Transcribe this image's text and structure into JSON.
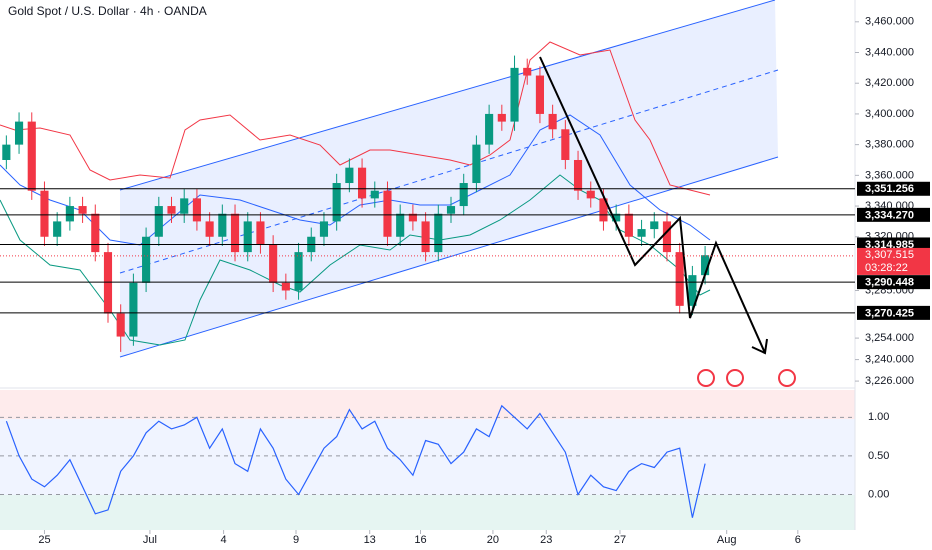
{
  "chart_data": {
    "type": "candlestick",
    "title": "Gold Spot / U.S. Dollar · 4h · OANDA",
    "open": [
      3370,
      3380,
      3395,
      3350,
      3320,
      3330,
      3340,
      3335,
      3310,
      3270,
      3255,
      3290,
      3320,
      3340,
      3335,
      3345,
      3330,
      3320,
      3335,
      3310,
      3330,
      3315,
      3290,
      3285,
      3310,
      3320,
      3330,
      3355,
      3365,
      3345,
      3350,
      3320,
      3335,
      3330,
      3310,
      3335,
      3340,
      3355,
      3380,
      3400,
      3395,
      3430,
      3425,
      3400,
      3390,
      3370,
      3350,
      3345,
      3330,
      3335,
      3320,
      3325,
      3330,
      3310,
      3275,
      3295
    ],
    "high": [
      3386,
      3401,
      3401,
      3356,
      3336,
      3346,
      3346,
      3341,
      3316,
      3276,
      3296,
      3326,
      3346,
      3346,
      3351,
      3351,
      3336,
      3341,
      3341,
      3336,
      3336,
      3321,
      3296,
      3316,
      3326,
      3336,
      3361,
      3371,
      3371,
      3356,
      3356,
      3341,
      3341,
      3336,
      3341,
      3346,
      3361,
      3386,
      3406,
      3406,
      3438,
      3436,
      3431,
      3406,
      3396,
      3376,
      3356,
      3351,
      3341,
      3341,
      3331,
      3336,
      3336,
      3316,
      3301,
      3314
    ],
    "low": [
      3364,
      3374,
      3344,
      3314,
      3314,
      3324,
      3329,
      3304,
      3264,
      3245,
      3249,
      3284,
      3314,
      3329,
      3329,
      3324,
      3314,
      3314,
      3304,
      3304,
      3309,
      3284,
      3279,
      3279,
      3304,
      3314,
      3324,
      3349,
      3339,
      3339,
      3314,
      3314,
      3324,
      3304,
      3304,
      3329,
      3334,
      3349,
      3374,
      3389,
      3389,
      3419,
      3394,
      3384,
      3364,
      3344,
      3339,
      3324,
      3324,
      3314,
      3314,
      3319,
      3304,
      3270,
      3269,
      3289
    ],
    "close": [
      3380,
      3395,
      3350,
      3320,
      3330,
      3340,
      3335,
      3310,
      3270,
      3255,
      3290,
      3320,
      3340,
      3335,
      3345,
      3330,
      3320,
      3335,
      3310,
      3330,
      3315,
      3290,
      3285,
      3310,
      3320,
      3330,
      3355,
      3365,
      3345,
      3350,
      3320,
      3335,
      3330,
      3310,
      3335,
      3340,
      3355,
      3380,
      3400,
      3395,
      3430,
      3425,
      3400,
      3390,
      3370,
      3350,
      3345,
      3330,
      3335,
      3320,
      3325,
      3330,
      3310,
      3275,
      3295,
      3308
    ],
    "up_color": "#089981",
    "down_color": "#f23645",
    "xlim": [
      -0.5,
      66.8
    ],
    "xticks": [
      {
        "value": 3.0,
        "label": "25"
      },
      {
        "value": 11.3,
        "label": "Jul"
      },
      {
        "value": 17.1,
        "label": "4"
      },
      {
        "value": 22.8,
        "label": "9"
      },
      {
        "value": 28.6,
        "label": "13"
      },
      {
        "value": 32.6,
        "label": "16"
      },
      {
        "value": 38.3,
        "label": "20"
      },
      {
        "value": 42.5,
        "label": "23"
      },
      {
        "value": 48.3,
        "label": "27"
      },
      {
        "value": 56.7,
        "label": "Aug"
      },
      {
        "value": 62.3,
        "label": "6"
      }
    ],
    "ylim": [
      3221.5,
      3474.2
    ],
    "yticks": [
      {
        "value": 3460,
        "label": "3,460.000"
      },
      {
        "value": 3440,
        "label": "3,440.000"
      },
      {
        "value": 3420,
        "label": "3,420.000"
      },
      {
        "value": 3400,
        "label": "3,400.000"
      },
      {
        "value": 3380,
        "label": "3,380.000"
      },
      {
        "value": 3360,
        "label": "3,360.000"
      },
      {
        "value": 3340,
        "label": "3,340.000"
      },
      {
        "value": 3320,
        "label": "3,320.000"
      },
      {
        "value": 3285,
        "label": "3,285.000"
      },
      {
        "value": 3254,
        "label": "3,254.000"
      },
      {
        "value": 3240,
        "label": "3,240.000"
      },
      {
        "value": 3226,
        "label": "3,226.000"
      }
    ],
    "levels": [
      {
        "value": 3351.256,
        "label": "3,351.256"
      },
      {
        "value": 3334.27,
        "label": "3,334.270"
      },
      {
        "value": 3314.985,
        "label": "3,314.985"
      },
      {
        "value": 3290.448,
        "label": "3,290.448"
      },
      {
        "value": 3270.425,
        "label": "3,270.425"
      }
    ],
    "current_price": {
      "value": 3307.515,
      "label": "3,307.515",
      "countdown": "03:28:22",
      "color": "#f23645"
    },
    "indicator": {
      "color": "#2962ff",
      "ylim": [
        -0.46,
        1.38
      ],
      "yticks": [
        {
          "value": 1,
          "label": "1.00"
        },
        {
          "value": 0.5,
          "label": "0.50"
        },
        {
          "value": 0,
          "label": "0.00"
        }
      ],
      "values": [
        0.95,
        0.5,
        0.2,
        0.1,
        0.25,
        0.45,
        0.1,
        -0.25,
        -0.2,
        0.3,
        0.5,
        0.8,
        0.95,
        0.85,
        0.9,
        1.0,
        0.6,
        0.85,
        0.4,
        0.3,
        0.85,
        0.6,
        0.2,
        0.0,
        0.3,
        0.6,
        0.75,
        1.1,
        0.85,
        0.95,
        0.6,
        0.45,
        0.25,
        0.7,
        0.65,
        0.4,
        0.55,
        0.85,
        0.75,
        1.15,
        1.0,
        0.85,
        1.05,
        0.8,
        0.55,
        0.0,
        0.25,
        0.1,
        0.05,
        0.3,
        0.4,
        0.35,
        0.55,
        0.6,
        -0.3,
        0.4
      ]
    }
  }
}
